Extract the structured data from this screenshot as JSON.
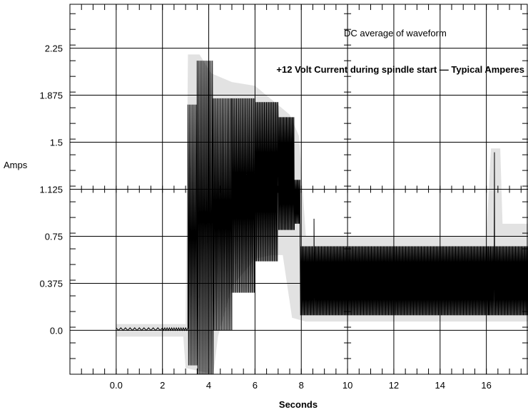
{
  "chart_data": {
    "type": "line",
    "title": "+12 Volt Current during spindle start — Typical Amperes",
    "annotation": "DC average of waveform",
    "xlabel": "Seconds",
    "ylabel": "Amps",
    "xlim": [
      -2.0,
      17.8
    ],
    "ylim": [
      -0.35,
      2.6
    ],
    "x_ticks": [
      {
        "value": 0,
        "label": "0.0"
      },
      {
        "value": 2,
        "label": "2"
      },
      {
        "value": 4,
        "label": "4"
      },
      {
        "value": 6,
        "label": "6"
      },
      {
        "value": 8,
        "label": "8"
      },
      {
        "value": 10,
        "label": "10"
      },
      {
        "value": 12,
        "label": "12"
      },
      {
        "value": 14,
        "label": "14"
      },
      {
        "value": 16,
        "label": "16"
      }
    ],
    "y_ticks": [
      {
        "value": 0.0,
        "label": "0.0"
      },
      {
        "value": 0.375,
        "label": "0.375"
      },
      {
        "value": 0.75,
        "label": "0.75"
      },
      {
        "value": 1.125,
        "label": "1.125"
      },
      {
        "value": 1.5,
        "label": "1.5"
      },
      {
        "value": 1.875,
        "label": "1.875"
      },
      {
        "value": 2.25,
        "label": "2.25"
      }
    ],
    "grid": true,
    "envelope": {
      "name": "DC average of waveform",
      "color": "#e2e2e2",
      "upper": [
        [
          0.0,
          0.05
        ],
        [
          3.0,
          0.05
        ],
        [
          3.1,
          2.2
        ],
        [
          3.6,
          2.2
        ],
        [
          4.1,
          2.05
        ],
        [
          5.0,
          1.98
        ],
        [
          6.0,
          1.95
        ],
        [
          7.5,
          1.72
        ],
        [
          7.9,
          1.55
        ],
        [
          8.2,
          0.75
        ],
        [
          10.0,
          0.75
        ],
        [
          14.0,
          0.75
        ],
        [
          16.0,
          0.75
        ],
        [
          16.2,
          1.45
        ],
        [
          16.6,
          1.45
        ],
        [
          16.7,
          0.85
        ],
        [
          17.8,
          0.85
        ]
      ],
      "lower": [
        [
          0.0,
          -0.05
        ],
        [
          2.9,
          -0.05
        ],
        [
          3.0,
          -0.3
        ],
        [
          4.2,
          -0.35
        ],
        [
          4.4,
          -0.05
        ],
        [
          5.0,
          0.35
        ],
        [
          6.0,
          0.57
        ],
        [
          6.7,
          0.6
        ],
        [
          7.2,
          0.6
        ],
        [
          7.6,
          0.1
        ],
        [
          8.2,
          0.07
        ],
        [
          10.0,
          0.07
        ],
        [
          14.0,
          0.07
        ],
        [
          16.0,
          0.07
        ],
        [
          17.8,
          0.07
        ]
      ]
    },
    "series": [
      {
        "name": "",
        "color": "#000000",
        "segments": [
          {
            "x_start": 0.0,
            "x_end": 2.0,
            "low": 0.0,
            "high": 0.02,
            "period": 0.2
          },
          {
            "x_start": 2.0,
            "x_end": 3.1,
            "low": 0.0,
            "high": 0.02,
            "period": 0.1
          },
          {
            "x_start": 3.1,
            "x_end": 3.5,
            "low": -0.28,
            "high": 1.8,
            "period": 0.06
          },
          {
            "x_start": 3.5,
            "x_end": 4.2,
            "low": -0.35,
            "high": 2.15,
            "period": 0.06
          },
          {
            "x_start": 4.2,
            "x_end": 5.0,
            "low": 0.0,
            "high": 1.85,
            "period": 0.055
          },
          {
            "x_start": 5.0,
            "x_end": 6.0,
            "low": 0.3,
            "high": 1.85,
            "period": 0.05
          },
          {
            "x_start": 6.0,
            "x_end": 7.0,
            "low": 0.55,
            "high": 1.82,
            "period": 0.045
          },
          {
            "x_start": 7.0,
            "x_end": 7.7,
            "low": 0.8,
            "high": 1.7,
            "period": 0.04
          },
          {
            "x_start": 7.7,
            "x_end": 7.95,
            "low": 0.85,
            "high": 1.2,
            "period": 0.04
          },
          {
            "x_start": 7.95,
            "x_end": 16.1,
            "low": 0.12,
            "high": 0.67,
            "period": 0.04
          },
          {
            "x_start": 16.1,
            "x_end": 17.8,
            "low": 0.12,
            "high": 0.67,
            "period": 0.04
          }
        ],
        "spikes": [
          [
            8.55,
            0.89
          ],
          [
            16.35,
            1.42
          ]
        ]
      }
    ]
  }
}
